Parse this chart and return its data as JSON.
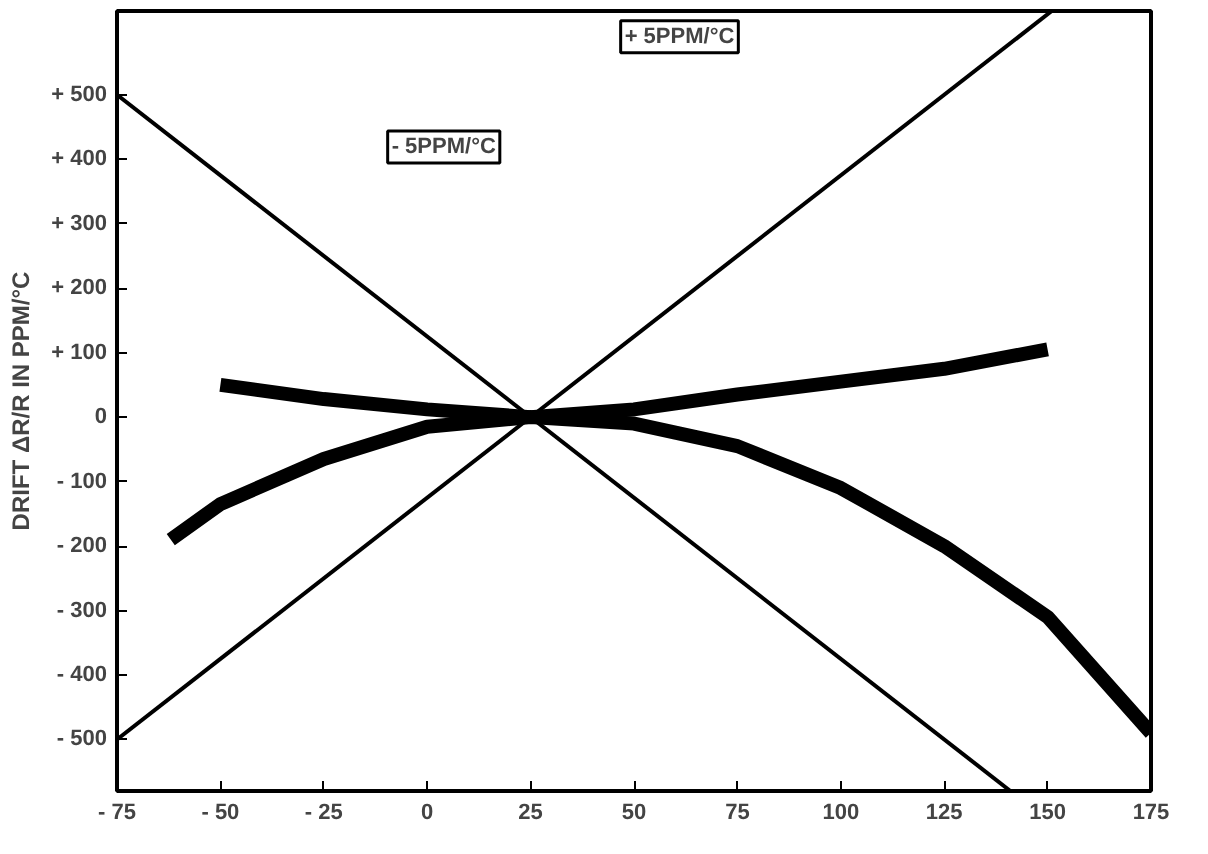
{
  "chart_data": {
    "type": "line",
    "ylabel": "DRIFT ΔR/R IN PPM/°C",
    "xlim": [
      -75,
      175
    ],
    "ylim": [
      -580,
      630
    ],
    "xticks": [
      {
        "value": -75,
        "label": "- 75"
      },
      {
        "value": -50,
        "label": "- 50"
      },
      {
        "value": -25,
        "label": "- 25"
      },
      0,
      25,
      50,
      75,
      100,
      125,
      150,
      175
    ],
    "yticks": [
      {
        "value": -500,
        "label": "- 500"
      },
      {
        "value": -400,
        "label": "- 400"
      },
      {
        "value": -300,
        "label": "- 300"
      },
      {
        "value": -200,
        "label": "- 200"
      },
      {
        "value": -100,
        "label": "- 100"
      },
      0,
      {
        "value": 100,
        "label": "+ 100"
      },
      {
        "value": 200,
        "label": "+ 200"
      },
      {
        "value": 300,
        "label": "+ 300"
      },
      {
        "value": 400,
        "label": "+ 400"
      },
      {
        "value": 500,
        "label": "+ 500"
      }
    ],
    "grid": false,
    "legend": false,
    "marker": "none",
    "line_style": "solid",
    "series": [
      {
        "name": "+ 5PPM/°C",
        "color": "#000000",
        "x": [
          -75,
          151
        ],
        "values": [
          -500,
          630
        ]
      },
      {
        "name": "- 5PPM/°C",
        "color": "#000000",
        "x": [
          -75,
          141
        ],
        "values": [
          500,
          -580
        ]
      },
      {
        "color": "#000000",
        "x": [
          -50,
          -25,
          0,
          25,
          50,
          75,
          100,
          125,
          150
        ],
        "values": [
          50,
          28,
          12,
          0,
          12,
          35,
          55,
          75,
          105
        ]
      },
      {
        "color": "#000000",
        "x": [
          -62,
          -50,
          -25,
          0,
          25,
          50,
          75,
          100,
          125,
          150,
          175
        ],
        "values": [
          -190,
          -135,
          -65,
          -15,
          0,
          -10,
          -45,
          -110,
          -200,
          -310,
          -490
        ]
      }
    ]
  }
}
